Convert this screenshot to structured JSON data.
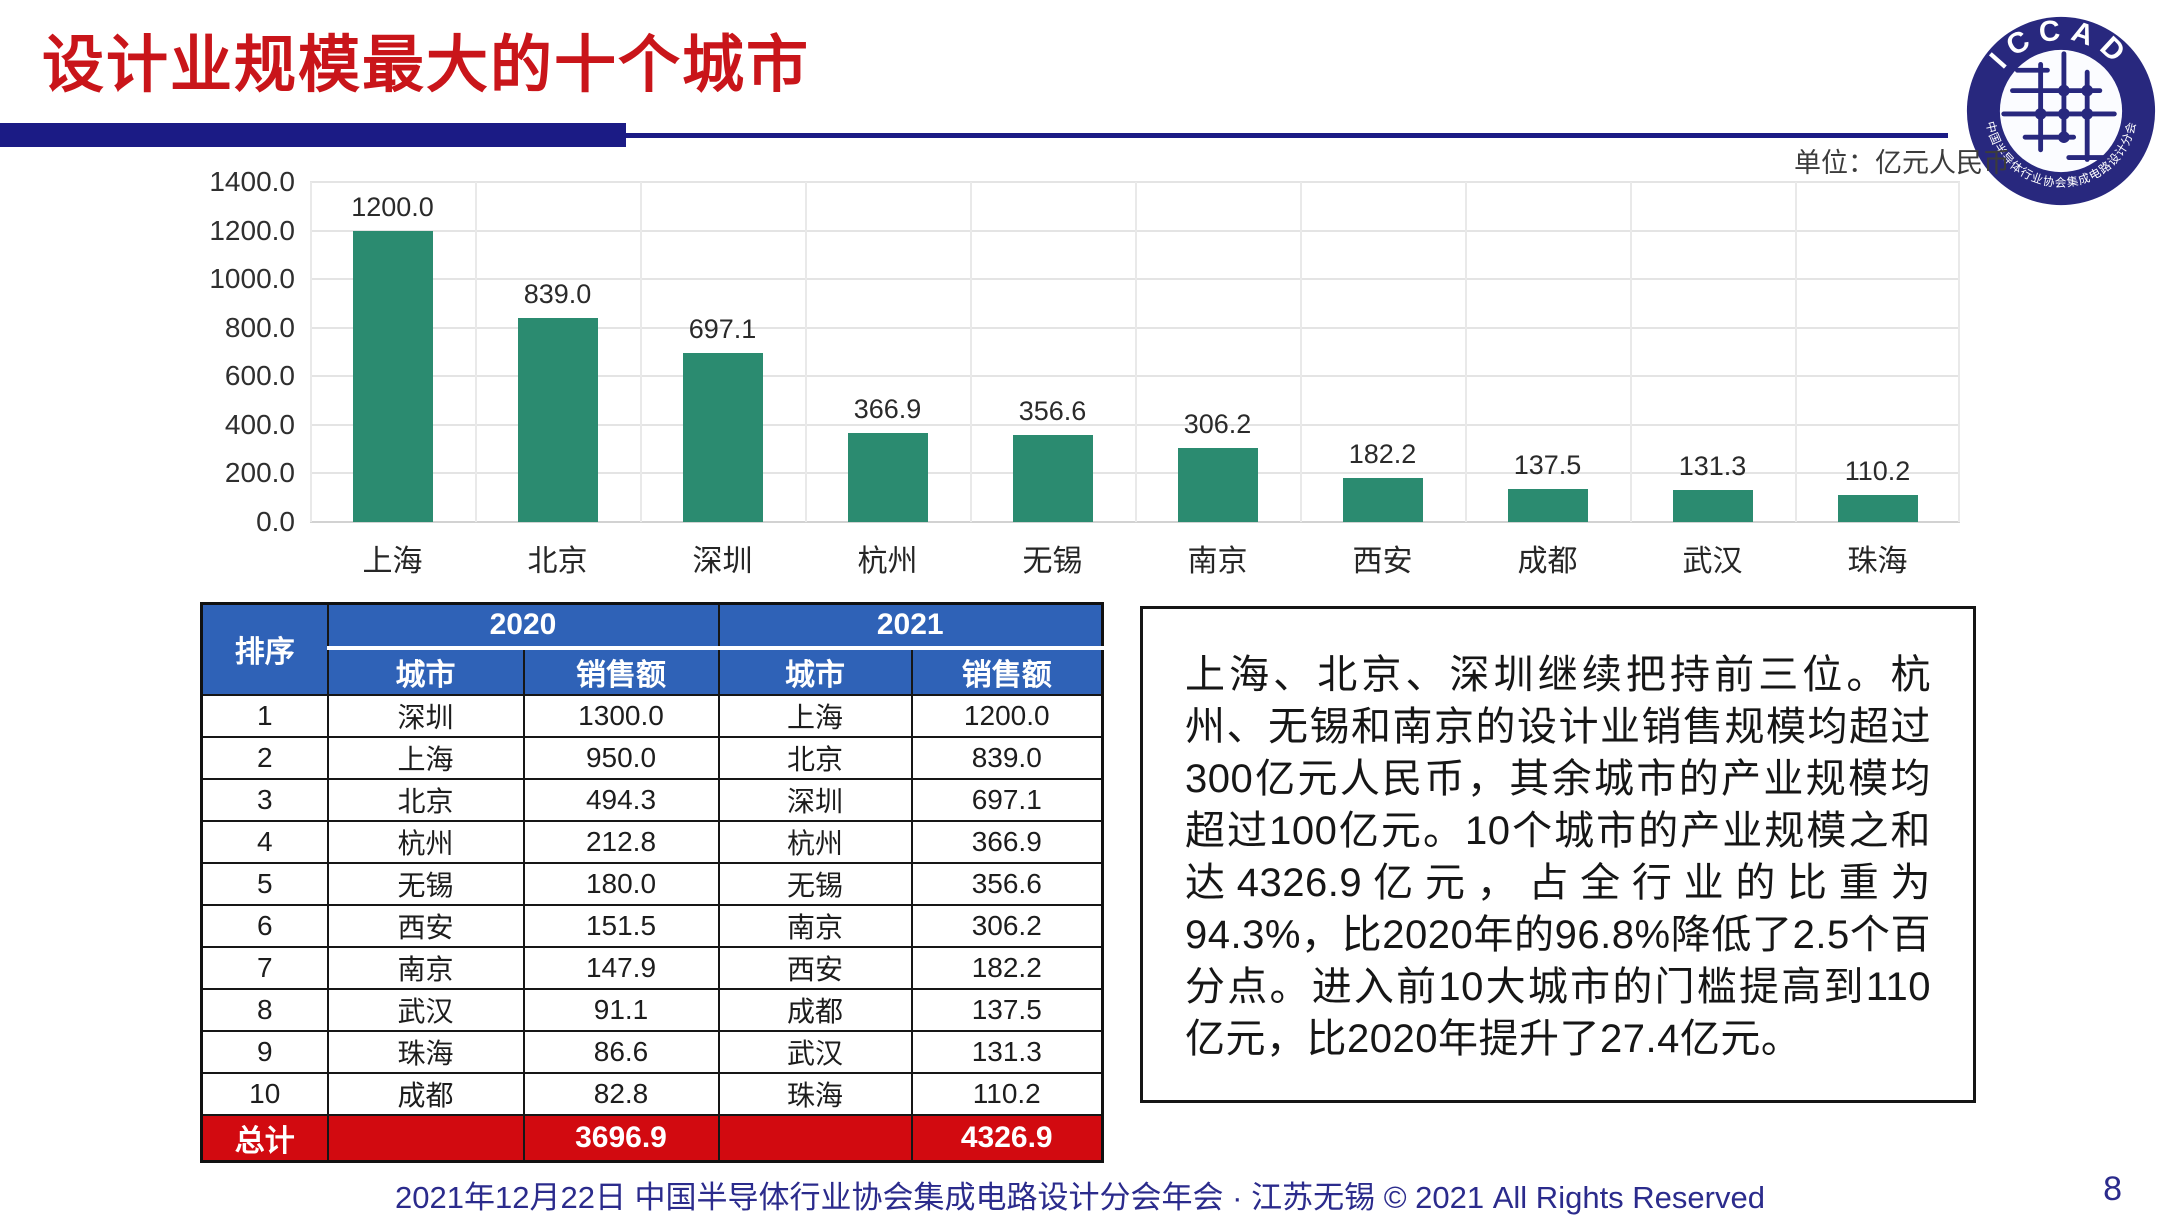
{
  "header": {
    "title": "设计业规模最大的十个城市",
    "logo": {
      "top_text": "ICCAD",
      "bottom_text": "中国半导体行业协会集成电路设计分会"
    }
  },
  "unit_label": "单位：亿元人民币",
  "chart_data": {
    "type": "bar",
    "title": "",
    "xlabel": "",
    "ylabel": "",
    "unit": "亿元人民币",
    "categories": [
      "上海",
      "北京",
      "深圳",
      "杭州",
      "无锡",
      "南京",
      "西安",
      "成都",
      "武汉",
      "珠海"
    ],
    "values": [
      1200.0,
      839.0,
      697.1,
      366.9,
      356.6,
      306.2,
      182.2,
      137.5,
      131.3,
      110.2
    ],
    "value_labels": [
      "1200.0",
      "839.0",
      "697.1",
      "366.9",
      "356.6",
      "306.2",
      "182.2",
      "137.5",
      "131.3",
      "110.2"
    ],
    "ylim": [
      0,
      1400
    ],
    "ytick_step": 200,
    "ytick_labels": [
      "1400.0",
      "1200.0",
      "1000.0",
      "800.0",
      "600.0",
      "400.0",
      "200.0",
      "0.0"
    ],
    "grid": true,
    "legend": "none",
    "bar_color": "#2b8b70"
  },
  "table": {
    "rank_header": "排序",
    "year_2020": "2020",
    "year_2021": "2021",
    "sub_headers": [
      "城市",
      "销售额",
      "城市",
      "销售额"
    ],
    "rows": [
      [
        "1",
        "深圳",
        "1300.0",
        "上海",
        "1200.0"
      ],
      [
        "2",
        "上海",
        "950.0",
        "北京",
        "839.0"
      ],
      [
        "3",
        "北京",
        "494.3",
        "深圳",
        "697.1"
      ],
      [
        "4",
        "杭州",
        "212.8",
        "杭州",
        "366.9"
      ],
      [
        "5",
        "无锡",
        "180.0",
        "无锡",
        "356.6"
      ],
      [
        "6",
        "西安",
        "151.5",
        "南京",
        "306.2"
      ],
      [
        "7",
        "南京",
        "147.9",
        "西安",
        "182.2"
      ],
      [
        "8",
        "武汉",
        "91.1",
        "成都",
        "137.5"
      ],
      [
        "9",
        "珠海",
        "86.6",
        "武汉",
        "131.3"
      ],
      [
        "10",
        "成都",
        "82.8",
        "珠海",
        "110.2"
      ]
    ],
    "total_row": {
      "label": "总计",
      "sales_2020": "3696.9",
      "sales_2021": "4326.9"
    }
  },
  "commentary": "上海、北京、深圳继续把持前三位。杭州、无锡和南京的设计业销售规模均超过300亿元人民币，其余城市的产业规模均超过100亿元。10个城市的产业规模之和达4326.9亿元，占全行业的比重为94.3%，比2020年的96.8%降低了2.5个百分点。进入前10大城市的门槛提高到110亿元，比2020年提升了27.4亿元。",
  "footer": {
    "text": "2021年12月22日 中国半导体行业协会集成电路设计分会年会 · 江苏无锡 © 2021 All Rights Reserved",
    "page_number": "8"
  },
  "colors": {
    "title_red": "#c9151a",
    "rule_navy": "#1b1b85",
    "bar_green": "#2b8b70",
    "table_header_blue": "#2f62b7",
    "total_row_red": "#d20a10",
    "footer_navy": "#2b2b8c"
  }
}
